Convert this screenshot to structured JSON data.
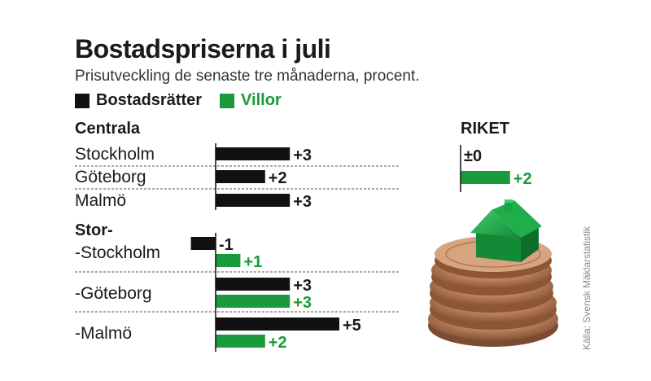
{
  "chart_data": {
    "type": "bar",
    "title": "Bostadspriserna i juli",
    "subtitle": "Prisutveckling de senaste tre månaderna, procent.",
    "legend": [
      {
        "name": "Bostadsrätter",
        "color": "#111111"
      },
      {
        "name": "Villor",
        "color": "#1a9a3a"
      }
    ],
    "groups": [
      {
        "heading": "Centrala",
        "rows": [
          {
            "label": "Stockholm",
            "bars": [
              {
                "series": "Bostadsrätter",
                "value": 3,
                "text": "+3"
              }
            ]
          },
          {
            "label": "Göteborg",
            "bars": [
              {
                "series": "Bostadsrätter",
                "value": 2,
                "text": "+2"
              }
            ]
          },
          {
            "label": "Malmö",
            "bars": [
              {
                "series": "Bostadsrätter",
                "value": 3,
                "text": "+3"
              }
            ]
          }
        ]
      },
      {
        "heading": "Stor-",
        "rows": [
          {
            "label": "-Stockholm",
            "bars": [
              {
                "series": "Bostadsrätter",
                "value": -1,
                "text": "-1"
              },
              {
                "series": "Villor",
                "value": 1,
                "text": "+1"
              }
            ]
          },
          {
            "label": "-Göteborg",
            "bars": [
              {
                "series": "Bostadsrätter",
                "value": 3,
                "text": "+3"
              },
              {
                "series": "Villor",
                "value": 3,
                "text": "+3"
              }
            ]
          },
          {
            "label": "-Malmö",
            "bars": [
              {
                "series": "Bostadsrätter",
                "value": 5,
                "text": "+5"
              },
              {
                "series": "Villor",
                "value": 2,
                "text": "+2"
              }
            ]
          }
        ]
      }
    ],
    "riket": {
      "heading": "RIKET",
      "bars": [
        {
          "series": "Bostadsrätter",
          "value": 0,
          "text": "±0"
        },
        {
          "series": "Villor",
          "value": 2,
          "text": "+2"
        }
      ]
    },
    "source": "Källa: Svensk Mäklarstatistik"
  }
}
